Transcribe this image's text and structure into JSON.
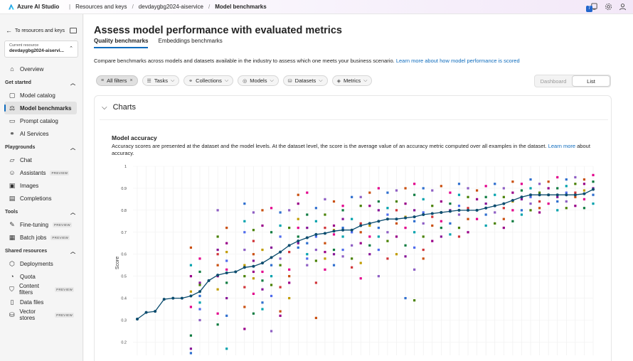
{
  "topbar": {
    "brand": "Azure AI Studio",
    "breadcrumbs": [
      "Resources and keys",
      "devdaygbg2024-aiservice",
      "Model benchmarks"
    ],
    "notification_count": "7"
  },
  "sidebar": {
    "back_label": "To resources and keys",
    "resource_label": "Current resource",
    "resource_value": "devdaygbg2024-aiservi...",
    "overview": "Overview",
    "get_started": {
      "title": "Get started",
      "items": [
        "Model catalog",
        "Model benchmarks",
        "Prompt catalog",
        "AI Services"
      ]
    },
    "playgrounds": {
      "title": "Playgrounds",
      "items": [
        "Chat",
        "Assistants",
        "Images",
        "Completions"
      ],
      "preview": "PREVIEW"
    },
    "tools": {
      "title": "Tools",
      "items": [
        "Fine-tuning",
        "Batch jobs"
      ],
      "preview": "PREVIEW"
    },
    "shared": {
      "title": "Shared resources",
      "items": [
        "Deployments",
        "Quota",
        "Content filters",
        "Data files",
        "Vector stores"
      ],
      "preview": "PREVIEW"
    }
  },
  "main": {
    "title": "Assess model performance with evaluated metrics",
    "tabs": [
      "Quality benchmarks",
      "Embeddings benchmarks"
    ],
    "description": "Compare benchmarks across models and datasets available in the industry to assess which one meets your business scenario.",
    "description_link": "Learn more about how model performance is scored",
    "filters": {
      "all": "All filters",
      "items": [
        "Tasks",
        "Collections",
        "Models",
        "Datasets",
        "Metrics"
      ]
    },
    "view_toggle": [
      "Dashboard",
      "List"
    ],
    "charts_header": "Charts",
    "chart_title": "Model accuracy",
    "chart_desc": "Accuracy scores are presented at the dataset and the model levels. At the dataset level, the score is the average value of an accuracy metric computed over all examples in the dataset.",
    "chart_desc_link": "Learn more",
    "chart_desc_tail": "about accuracy."
  },
  "chart_data": {
    "type": "scatter",
    "ylabel": "Score",
    "ylim": [
      0.14,
      1.0
    ],
    "yticks": [
      "1",
      "0.9",
      "0.8",
      "0.7",
      "0.6",
      "0.5",
      "0.4",
      "0.3",
      "0.2"
    ],
    "ytick_values": [
      1.0,
      0.9,
      0.8,
      0.7,
      0.6,
      0.5,
      0.4,
      0.3,
      0.2
    ],
    "grid": true,
    "colors": {
      "line": "#0b4c6e",
      "palette": [
        "#2f6fcf",
        "#d13438",
        "#107c41",
        "#8e5ec4",
        "#c19c00",
        "#00a2ad",
        "#ca5010",
        "#881798",
        "#498205",
        "#e3008c",
        "#4f6bed",
        "#9a0089"
      ]
    },
    "series": [
      {
        "name": "",
        "type": "line",
        "values": [
          0.305,
          0.335,
          0.34,
          0.395,
          0.4,
          0.4,
          0.41,
          0.43,
          0.48,
          0.505,
          0.515,
          0.52,
          0.54,
          0.545,
          0.56,
          0.585,
          0.61,
          0.64,
          0.66,
          0.675,
          0.69,
          0.695,
          0.705,
          0.71,
          0.71,
          0.73,
          0.74,
          0.75,
          0.76,
          0.76,
          0.765,
          0.77,
          0.78,
          0.785,
          0.79,
          0.795,
          0.8,
          0.8,
          0.8,
          0.81,
          0.82,
          0.83,
          0.845,
          0.86,
          0.87,
          0.87,
          0.87,
          0.87,
          0.87,
          0.87,
          0.875,
          0.895
        ]
      }
    ],
    "scatter_columns": [
      [],
      [],
      [],
      [],
      [],
      [],
      [
        0.63,
        0.5,
        0.43,
        0.36,
        0.23,
        0.17,
        0.15,
        0.55
      ],
      [
        0.58,
        0.52,
        0.47,
        0.41,
        0.38,
        0.35,
        0.3,
        0.46
      ],
      [],
      [
        0.8,
        0.68,
        0.6,
        0.55,
        0.5,
        0.44,
        0.33,
        0.28,
        0.62
      ],
      [
        0.72,
        0.65,
        0.61,
        0.53,
        0.47,
        0.4,
        0.32,
        0.17,
        0.57
      ],
      [],
      [
        0.83,
        0.75,
        0.7,
        0.62,
        0.5,
        0.45,
        0.36,
        0.26,
        0.55
      ],
      [
        0.79,
        0.71,
        0.66,
        0.6,
        0.52,
        0.49,
        0.42,
        0.33,
        0.57
      ],
      [
        0.8,
        0.73,
        0.62,
        0.52,
        0.48,
        0.44,
        0.38,
        0.35
      ],
      [
        0.81,
        0.7,
        0.63,
        0.55,
        0.5,
        0.41,
        0.25,
        0.46
      ],
      [
        0.79,
        0.73,
        0.68,
        0.58,
        0.55,
        0.45,
        0.34,
        0.32
      ],
      [
        0.8,
        0.72,
        0.61,
        0.5,
        0.47,
        0.4,
        0.53
      ],
      [
        0.87,
        0.83,
        0.76,
        0.72,
        0.68,
        0.65,
        0.63
      ],
      [
        0.88,
        0.78,
        0.72,
        0.65,
        0.6,
        0.58,
        0.55
      ],
      [
        0.81,
        0.75,
        0.68,
        0.62,
        0.57,
        0.47,
        0.31
      ],
      [
        0.85,
        0.78,
        0.72,
        0.65,
        0.61,
        0.58,
        0.53
      ],
      [
        0.84,
        0.73,
        0.71,
        0.69,
        0.62,
        0.6,
        0.55
      ],
      [
        0.82,
        0.8,
        0.76,
        0.72,
        0.68,
        0.62,
        0.59
      ],
      [
        0.86,
        0.76,
        0.7,
        0.64,
        0.58,
        0.54
      ],
      [
        0.86,
        0.82,
        0.74,
        0.7,
        0.65,
        0.56,
        0.49
      ],
      [
        0.88,
        0.82,
        0.73,
        0.68,
        0.64,
        0.6
      ],
      [
        0.9,
        0.84,
        0.8,
        0.72,
        0.68,
        0.62,
        0.5
      ],
      [
        0.88,
        0.81,
        0.78,
        0.7,
        0.66,
        0.58
      ],
      [
        0.89,
        0.84,
        0.8,
        0.74,
        0.68,
        0.6
      ],
      [
        0.9,
        0.83,
        0.77,
        0.72,
        0.64,
        0.59,
        0.4
      ],
      [
        0.92,
        0.87,
        0.8,
        0.75,
        0.7,
        0.63,
        0.53,
        0.39
      ],
      [
        0.9,
        0.85,
        0.79,
        0.74,
        0.68,
        0.62,
        0.58
      ],
      [
        0.89,
        0.82,
        0.77,
        0.73,
        0.66
      ],
      [
        0.91,
        0.84,
        0.79,
        0.75,
        0.72,
        0.68
      ],
      [
        0.88,
        0.83,
        0.8,
        0.74,
        0.69
      ],
      [
        0.92,
        0.87,
        0.82,
        0.78,
        0.72,
        0.68
      ],
      [
        0.9,
        0.86,
        0.81,
        0.76,
        0.7
      ],
      [
        0.89,
        0.85,
        0.8,
        0.76
      ],
      [
        0.91,
        0.86,
        0.83,
        0.78,
        0.73
      ],
      [
        0.92,
        0.87,
        0.82,
        0.79,
        0.74
      ],
      [
        0.9,
        0.86,
        0.81,
        0.76,
        0.72
      ],
      [
        0.93,
        0.88,
        0.84,
        0.8,
        0.75
      ],
      [
        0.92,
        0.89,
        0.85,
        0.8,
        0.78
      ],
      [
        0.94,
        0.9,
        0.86,
        0.83,
        0.8
      ],
      [
        0.92,
        0.88,
        0.84,
        0.81,
        0.79
      ],
      [
        0.93,
        0.9,
        0.87,
        0.83
      ],
      [
        0.95,
        0.9,
        0.86,
        0.84,
        0.8
      ],
      [
        0.94,
        0.91,
        0.88,
        0.84,
        0.81
      ],
      [
        0.95,
        0.92,
        0.88,
        0.86,
        0.82
      ],
      [
        0.94,
        0.92,
        0.89,
        0.85,
        0.81
      ],
      [
        0.96,
        0.93,
        0.9,
        0.87,
        0.83
      ]
    ]
  }
}
